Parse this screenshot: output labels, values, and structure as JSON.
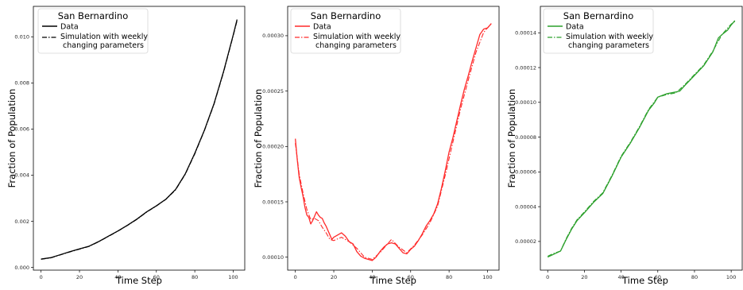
{
  "figure": {
    "title": ""
  },
  "chart_data": [
    {
      "type": "line",
      "title": "",
      "xlabel": "Time Step",
      "ylabel": "Fraction of Population",
      "xlim": [
        -4,
        106
      ],
      "ylim": [
        -0.00012,
        0.01132
      ],
      "xticks": [
        0,
        20,
        40,
        60,
        80,
        100
      ],
      "xtick_labels": [
        "0",
        "20",
        "40",
        "60",
        "80",
        "100"
      ],
      "yticks": [
        0.0,
        0.002,
        0.004,
        0.006,
        0.008,
        0.01
      ],
      "ytick_labels": [
        "0.000",
        "0.002",
        "0.004",
        "0.006",
        "0.008",
        "0.010"
      ],
      "grid": false,
      "legend": {
        "title": "San Bernardino",
        "placement": "top-left",
        "entries": [
          "Data",
          "Simulation with weekly",
          "changing parameters"
        ]
      },
      "series": [
        {
          "name": "Data",
          "color": "#000000",
          "dash": "solid",
          "points": [
            [
              0,
              0.00036
            ],
            [
              5,
              0.00042
            ],
            [
              10,
              0.00055
            ],
            [
              15,
              0.00068
            ],
            [
              20,
              0.0008
            ],
            [
              25,
              0.00092
            ],
            [
              30,
              0.00112
            ],
            [
              35,
              0.00135
            ],
            [
              40,
              0.00158
            ],
            [
              45,
              0.00183
            ],
            [
              50,
              0.0021
            ],
            [
              55,
              0.00241
            ],
            [
              60,
              0.00267
            ],
            [
              65,
              0.00296
            ],
            [
              70,
              0.00338
            ],
            [
              75,
              0.00405
            ],
            [
              80,
              0.00495
            ],
            [
              85,
              0.00595
            ],
            [
              90,
              0.0071
            ],
            [
              95,
              0.0085
            ],
            [
              100,
              0.01008
            ],
            [
              102,
              0.01075
            ]
          ]
        },
        {
          "name": "Simulation with weekly changing parameters",
          "color": "#000000",
          "dash": "dashdot",
          "points": [
            [
              0,
              0.00035
            ],
            [
              5,
              0.00041
            ],
            [
              10,
              0.00054
            ],
            [
              15,
              0.00067
            ],
            [
              20,
              0.00079
            ],
            [
              25,
              0.00091
            ],
            [
              30,
              0.00111
            ],
            [
              35,
              0.00134
            ],
            [
              40,
              0.00157
            ],
            [
              45,
              0.00182
            ],
            [
              50,
              0.00209
            ],
            [
              55,
              0.0024
            ],
            [
              60,
              0.00266
            ],
            [
              65,
              0.00295
            ],
            [
              70,
              0.00336
            ],
            [
              75,
              0.00403
            ],
            [
              80,
              0.00492
            ],
            [
              85,
              0.00593
            ],
            [
              90,
              0.00707
            ],
            [
              95,
              0.00847
            ],
            [
              100,
              0.01005
            ],
            [
              102,
              0.0107
            ]
          ]
        }
      ]
    },
    {
      "type": "line",
      "title": "",
      "xlabel": "Time Step",
      "ylabel": "Fraction of Population",
      "xlim": [
        -4,
        106
      ],
      "ylim": [
        8.83e-05,
        0.0003265
      ],
      "xticks": [
        0,
        20,
        40,
        60,
        80,
        100
      ],
      "xtick_labels": [
        "0",
        "20",
        "40",
        "60",
        "80",
        "100"
      ],
      "yticks": [
        0.0001,
        0.00015,
        0.0002,
        0.00025,
        0.0003
      ],
      "ytick_labels": [
        "0.00010",
        "0.00015",
        "0.00020",
        "0.00025",
        "0.00030"
      ],
      "grid": false,
      "legend": {
        "title": "San Bernardino",
        "placement": "top-left",
        "entries": [
          "Data",
          "Simulation with weekly",
          "changing parameters"
        ]
      },
      "series": [
        {
          "name": "Data",
          "color": "#ff2a2a",
          "dash": "solid",
          "points": [
            [
              0,
              0.000207
            ],
            [
              1,
              0.000188
            ],
            [
              2,
              0.000172
            ],
            [
              3,
              0.000163
            ],
            [
              4,
              0.000155
            ],
            [
              5,
              0.000145
            ],
            [
              6,
              0.000138
            ],
            [
              7,
              0.000136
            ],
            [
              8,
              0.00013
            ],
            [
              9,
              0.000133
            ],
            [
              10,
              0.000137
            ],
            [
              11,
              0.000141
            ],
            [
              12,
              0.000138
            ],
            [
              13,
              0.000136
            ],
            [
              14,
              0.000135
            ],
            [
              15,
              0.000131
            ],
            [
              16,
              0.000128
            ],
            [
              17,
              0.000124
            ],
            [
              18,
              0.00012
            ],
            [
              19,
              0.000116
            ],
            [
              20,
              0.000118
            ],
            [
              22,
              0.00012
            ],
            [
              24,
              0.000122
            ],
            [
              26,
              0.000119
            ],
            [
              28,
              0.000114
            ],
            [
              30,
              0.000112
            ],
            [
              32,
              0.000105
            ],
            [
              34,
              0.000101
            ],
            [
              36,
              9.9e-05
            ],
            [
              38,
              9.8e-05
            ],
            [
              40,
              9.7e-05
            ],
            [
              42,
              0.0001
            ],
            [
              44,
              0.000105
            ],
            [
              46,
              0.000109
            ],
            [
              48,
              0.000112
            ],
            [
              50,
              0.000113
            ],
            [
              52,
              0.000112
            ],
            [
              54,
              0.000108
            ],
            [
              56,
              0.000104
            ],
            [
              58,
              0.000103
            ],
            [
              60,
              0.000107
            ],
            [
              62,
              0.00011
            ],
            [
              64,
              0.000115
            ],
            [
              66,
              0.000121
            ],
            [
              68,
              0.000128
            ],
            [
              70,
              0.000133
            ],
            [
              72,
              0.000139
            ],
            [
              74,
              0.000148
            ],
            [
              76,
              0.000162
            ],
            [
              78,
              0.000178
            ],
            [
              80,
              0.000195
            ],
            [
              82,
              0.000208
            ],
            [
              84,
              0.000223
            ],
            [
              86,
              0.000238
            ],
            [
              88,
              0.000252
            ],
            [
              90,
              0.000264
            ],
            [
              92,
              0.000277
            ],
            [
              94,
              0.000289
            ],
            [
              96,
              0.000301
            ],
            [
              98,
              0.000306
            ],
            [
              100,
              0.000307
            ],
            [
              102,
              0.000311
            ]
          ]
        },
        {
          "name": "Simulation with weekly changing parameters",
          "color": "#ff2a2a",
          "dash": "dashdot",
          "points": [
            [
              0,
              0.000203
            ],
            [
              2,
              0.000175
            ],
            [
              4,
              0.000158
            ],
            [
              6,
              0.000143
            ],
            [
              8,
              0.000134
            ],
            [
              10,
              0.000135
            ],
            [
              12,
              0.000133
            ],
            [
              14,
              0.000127
            ],
            [
              16,
              0.000122
            ],
            [
              18,
              0.000116
            ],
            [
              20,
              0.000115
            ],
            [
              24,
              0.000118
            ],
            [
              28,
              0.000114
            ],
            [
              32,
              0.000108
            ],
            [
              36,
              0.0001
            ],
            [
              40,
              9.8e-05
            ],
            [
              44,
              0.000104
            ],
            [
              48,
              0.000112
            ],
            [
              50,
              0.000116
            ],
            [
              54,
              0.000109
            ],
            [
              58,
              0.000104
            ],
            [
              62,
              0.000111
            ],
            [
              66,
              0.00012
            ],
            [
              70,
              0.000131
            ],
            [
              74,
              0.000146
            ],
            [
              78,
              0.000174
            ],
            [
              82,
              0.000204
            ],
            [
              86,
              0.000234
            ],
            [
              90,
              0.00026
            ],
            [
              94,
              0.000285
            ],
            [
              98,
              0.000303
            ],
            [
              102,
              0.000311
            ]
          ]
        }
      ]
    },
    {
      "type": "line",
      "title": "",
      "xlabel": "Time Step",
      "ylabel": "Fraction of Population",
      "xlim": [
        -4,
        106
      ],
      "ylim": [
        3.5e-06,
        0.0001552
      ],
      "xticks": [
        0,
        20,
        40,
        60,
        80,
        100
      ],
      "xtick_labels": [
        "0",
        "20",
        "40",
        "60",
        "80",
        "100"
      ],
      "yticks": [
        2e-05,
        4e-05,
        6e-05,
        8e-05,
        0.0001,
        0.00012,
        0.00014
      ],
      "ytick_labels": [
        "0.00002",
        "0.00004",
        "0.00006",
        "0.00008",
        "0.00010",
        "0.00012",
        "0.00014"
      ],
      "grid": false,
      "legend": {
        "title": "San Bernardino",
        "placement": "top-left",
        "entries": [
          "Data",
          "Simulation with weekly",
          "changing parameters"
        ]
      },
      "series": [
        {
          "name": "Data",
          "color": "#2ca02c",
          "dash": "solid",
          "points": [
            [
              0,
              1.1e-05
            ],
            [
              3,
              1.25e-05
            ],
            [
              7,
              1.45e-05
            ],
            [
              10,
              2.1e-05
            ],
            [
              13,
              2.7e-05
            ],
            [
              16,
              3.2e-05
            ],
            [
              20,
              3.65e-05
            ],
            [
              25,
              4.25e-05
            ],
            [
              30,
              4.75e-05
            ],
            [
              35,
              5.75e-05
            ],
            [
              40,
              6.85e-05
            ],
            [
              45,
              7.65e-05
            ],
            [
              50,
              8.55e-05
            ],
            [
              55,
              9.55e-05
            ],
            [
              58,
              9.95e-05
            ],
            [
              60,
              0.000103
            ],
            [
              65,
              0.000105
            ],
            [
              70,
              0.000106
            ],
            [
              72,
              0.0001065
            ],
            [
              75,
              0.00011
            ],
            [
              80,
              0.0001155
            ],
            [
              85,
              0.000121
            ],
            [
              90,
              0.000129
            ],
            [
              93,
              0.000137
            ],
            [
              95,
              0.000139
            ],
            [
              98,
              0.0001415
            ],
            [
              100,
              0.0001445
            ],
            [
              102,
              0.000147
            ]
          ]
        },
        {
          "name": "Simulation with weekly changing parameters",
          "color": "#2ca02c",
          "dash": "dashdot",
          "points": [
            [
              0,
              1.15e-05
            ],
            [
              3,
              1.3e-05
            ],
            [
              7,
              1.45e-05
            ],
            [
              10,
              2.15e-05
            ],
            [
              13,
              2.75e-05
            ],
            [
              16,
              3.25e-05
            ],
            [
              20,
              3.7e-05
            ],
            [
              25,
              4.3e-05
            ],
            [
              30,
              4.8e-05
            ],
            [
              35,
              5.8e-05
            ],
            [
              40,
              6.9e-05
            ],
            [
              45,
              7.7e-05
            ],
            [
              50,
              8.6e-05
            ],
            [
              55,
              9.6e-05
            ],
            [
              60,
              0.000103
            ],
            [
              65,
              0.0001045
            ],
            [
              70,
              0.0001055
            ],
            [
              75,
              0.0001105
            ],
            [
              80,
              0.000116
            ],
            [
              85,
              0.0001215
            ],
            [
              90,
              0.0001295
            ],
            [
              95,
              0.000139
            ],
            [
              100,
              0.000145
            ],
            [
              102,
              0.0001465
            ]
          ]
        }
      ]
    }
  ]
}
